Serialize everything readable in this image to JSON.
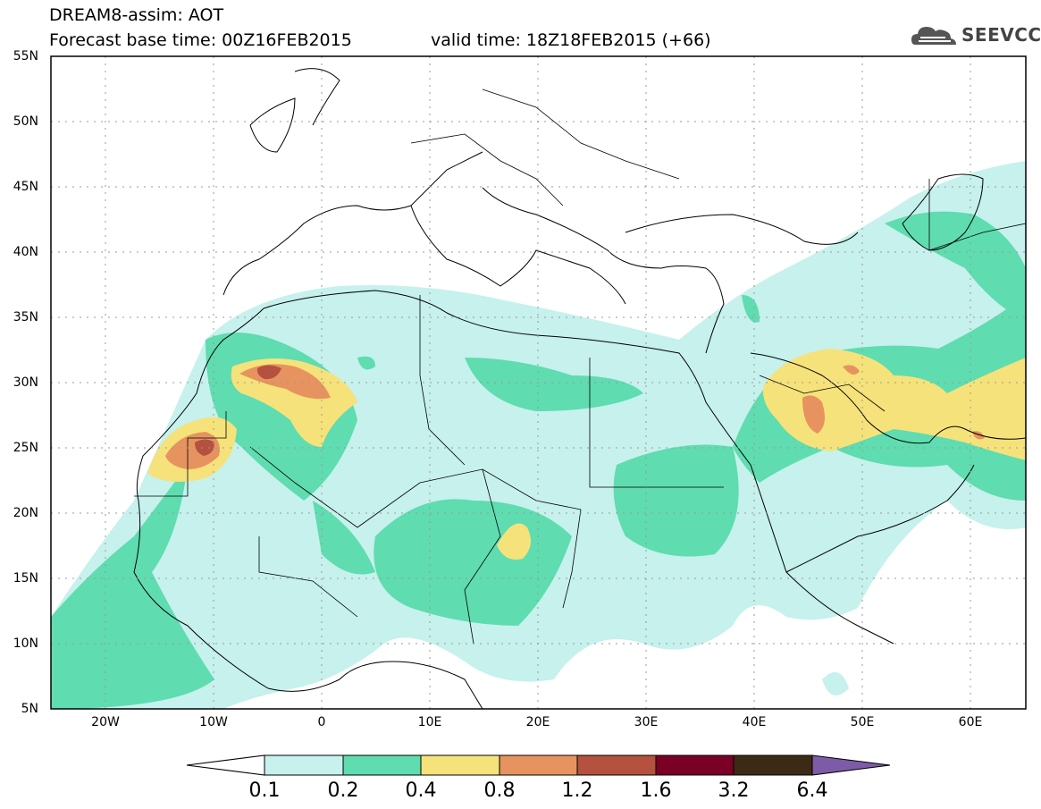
{
  "header": {
    "line1": "DREAM8-assim: AOT",
    "base_time": "Forecast base time: 00Z16FEB2015",
    "valid_time": "valid time: 18Z18FEB2015 (+66)",
    "logo_text": "SEEVCCC"
  },
  "map": {
    "lat_labels": [
      "55N",
      "50N",
      "45N",
      "40N",
      "35N",
      "30N",
      "25N",
      "20N",
      "15N",
      "10N",
      "5N"
    ],
    "lon_labels": [
      "20W",
      "10W",
      "0",
      "10E",
      "20E",
      "30E",
      "40E",
      "50E",
      "60E"
    ],
    "lat_range": [
      5,
      55
    ],
    "lon_range": [
      -25,
      65
    ],
    "grid": "dotted"
  },
  "colorbar": {
    "labels": [
      "0.1",
      "0.2",
      "0.4",
      "0.8",
      "1.2",
      "1.6",
      "3.2",
      "6.4"
    ],
    "colors": [
      "#ffffff",
      "#c6f1ec",
      "#5fdcb0",
      "#f6e27a",
      "#e6935f",
      "#b4513f",
      "#7a0026",
      "#3d2a14",
      "#7d5ba6"
    ]
  }
}
